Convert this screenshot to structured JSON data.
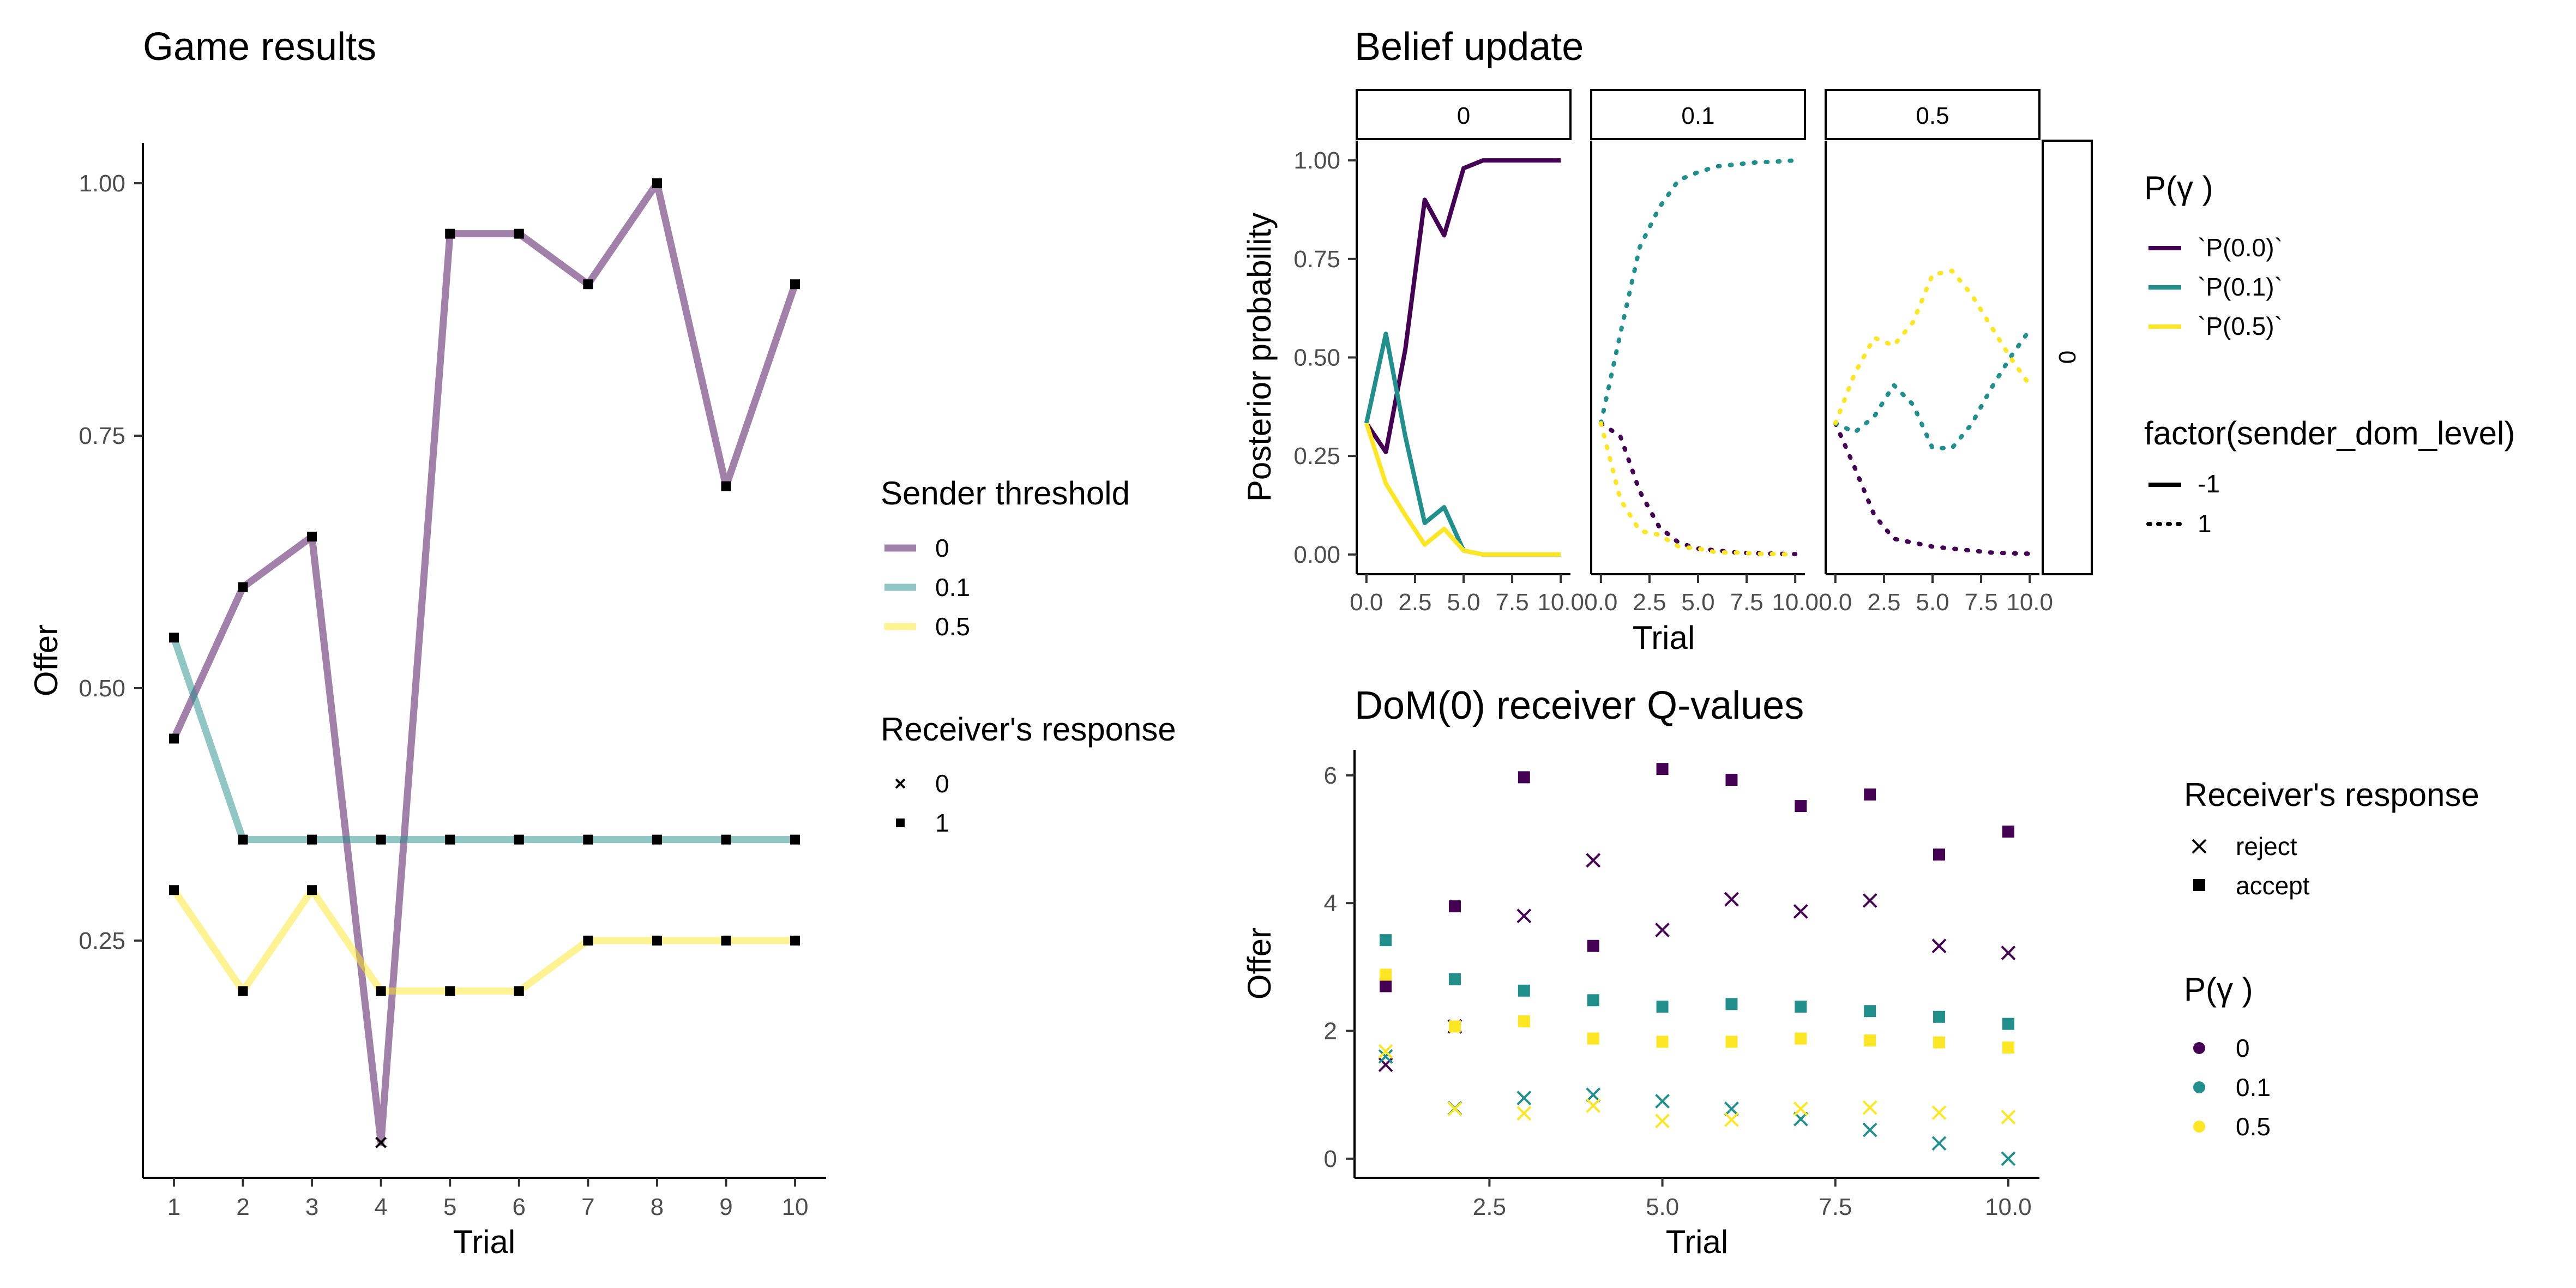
{
  "chart_data": [
    {
      "type": "line",
      "title": "Game results",
      "xlabel": "Trial",
      "ylabel": "Offer",
      "xlim": [
        0.55,
        10.45
      ],
      "ylim": [
        0.015,
        1.04
      ],
      "x_ticks": [
        1,
        2,
        3,
        4,
        5,
        6,
        7,
        8,
        9,
        10
      ],
      "y_ticks": [
        0.25,
        0.5,
        0.75,
        1.0
      ],
      "y_tick_labels": [
        "0.25",
        "0.50",
        "0.75",
        "1.00"
      ],
      "x": [
        1,
        2,
        3,
        4,
        5,
        6,
        7,
        8,
        9,
        10
      ],
      "series": [
        {
          "name": "0",
          "color": "#440154",
          "values": [
            0.45,
            0.6,
            0.65,
            0.05,
            0.95,
            0.95,
            0.9,
            1.0,
            0.7,
            0.9
          ],
          "responses": [
            1,
            1,
            1,
            0,
            1,
            1,
            1,
            1,
            1,
            1
          ]
        },
        {
          "name": "0.1",
          "color": "#21908C",
          "values": [
            0.55,
            0.35,
            0.35,
            0.35,
            0.35,
            0.35,
            0.35,
            0.35,
            0.35,
            0.35
          ],
          "responses": [
            1,
            1,
            1,
            1,
            1,
            1,
            1,
            1,
            1,
            1
          ]
        },
        {
          "name": "0.5",
          "color": "#FDE725",
          "values": [
            0.3,
            0.2,
            0.3,
            0.2,
            0.2,
            0.2,
            0.25,
            0.25,
            0.25,
            0.25
          ],
          "responses": [
            1,
            1,
            1,
            1,
            1,
            1,
            1,
            1,
            1,
            1
          ]
        }
      ],
      "legend": [
        {
          "title": "Sender threshold",
          "entries": [
            "0",
            "0.1",
            "0.5"
          ]
        },
        {
          "title": "Receiver's response",
          "entries": [
            "0",
            "1"
          ]
        }
      ]
    },
    {
      "type": "line",
      "title": "Belief update",
      "xlabel": "Trial",
      "ylabel": "Posterior probability",
      "xlim": [
        -0.5,
        10.5
      ],
      "ylim": [
        -0.05,
        1.05
      ],
      "x_ticks": [
        0,
        2.5,
        5,
        7.5,
        10
      ],
      "x_tick_labels": [
        "0.0",
        "2.5",
        "5.0",
        "7.5",
        "10.0"
      ],
      "y_ticks": [
        0,
        0.25,
        0.5,
        0.75,
        1.0
      ],
      "y_tick_labels": [
        "0.00",
        "0.25",
        "0.50",
        "0.75",
        "1.00"
      ],
      "x": [
        0,
        1,
        2,
        3,
        4,
        5,
        6,
        7,
        8,
        9,
        10
      ],
      "facet_columns": [
        "0",
        "0.1",
        "0.5"
      ],
      "facet_row": "0",
      "panels": [
        {
          "facet": "0",
          "series": [
            {
              "name": "`P(0.0)`",
              "color": "#440154",
              "dom_level": "-1",
              "values": [
                0.333,
                0.26,
                0.52,
                0.9,
                0.81,
                0.98,
                1.0,
                1.0,
                1.0,
                1.0,
                1.0
              ]
            },
            {
              "name": "`P(0.1)`",
              "color": "#21908C",
              "dom_level": "-1",
              "values": [
                0.333,
                0.56,
                0.3,
                0.08,
                0.12,
                0.01,
                0.0,
                0.0,
                0.0,
                0.0,
                0.0
              ]
            },
            {
              "name": "`P(0.5)`",
              "color": "#FDE725",
              "dom_level": "-1",
              "values": [
                0.333,
                0.18,
                0.1,
                0.025,
                0.065,
                0.01,
                0.0,
                0.0,
                0.0,
                0.0,
                0.0
              ]
            }
          ]
        },
        {
          "facet": "0.1",
          "series": [
            {
              "name": "`P(0.0)`",
              "color": "#440154",
              "dom_level": "1",
              "values": [
                0.333,
                0.3,
                0.16,
                0.07,
                0.03,
                0.015,
                0.01,
                0.005,
                0.003,
                0.002,
                0.001
              ]
            },
            {
              "name": "`P(0.1)`",
              "color": "#21908C",
              "dom_level": "1",
              "values": [
                0.333,
                0.56,
                0.78,
                0.88,
                0.95,
                0.97,
                0.985,
                0.99,
                0.995,
                0.997,
                1.0
              ]
            },
            {
              "name": "`P(0.5)`",
              "color": "#FDE725",
              "dom_level": "1",
              "values": [
                0.333,
                0.14,
                0.06,
                0.05,
                0.02,
                0.015,
                0.005,
                0.005,
                0.002,
                0.001,
                0.0
              ]
            }
          ]
        },
        {
          "facet": "0.5",
          "series": [
            {
              "name": "`P(0.0)`",
              "color": "#440154",
              "dom_level": "1",
              "values": [
                0.333,
                0.22,
                0.1,
                0.04,
                0.03,
                0.02,
                0.015,
                0.01,
                0.005,
                0.003,
                0.002
              ]
            },
            {
              "name": "`P(0.1)`",
              "color": "#21908C",
              "dom_level": "1",
              "values": [
                0.333,
                0.31,
                0.35,
                0.43,
                0.38,
                0.27,
                0.27,
                0.33,
                0.42,
                0.5,
                0.57
              ]
            },
            {
              "name": "`P(0.5)`",
              "color": "#FDE725",
              "dom_level": "1",
              "values": [
                0.333,
                0.46,
                0.55,
                0.53,
                0.59,
                0.71,
                0.72,
                0.66,
                0.58,
                0.5,
                0.43
              ]
            }
          ]
        }
      ],
      "legend": [
        {
          "title": "P(γ )",
          "entries": [
            "`P(0.0)`",
            "`P(0.1)`",
            "`P(0.5)`"
          ]
        },
        {
          "title": "factor(sender_dom_level)",
          "entries": [
            "-1",
            "1"
          ]
        }
      ]
    },
    {
      "type": "scatter",
      "title": "DoM(0) receiver Q-values",
      "xlabel": "Trial",
      "ylabel": "Offer",
      "xlim": [
        0.55,
        10.45
      ],
      "ylim": [
        -0.3,
        6.4
      ],
      "x_ticks": [
        2.5,
        5,
        7.5,
        10
      ],
      "x_tick_labels": [
        "2.5",
        "5.0",
        "7.5",
        "10.0"
      ],
      "y_ticks": [
        0,
        2,
        4,
        6
      ],
      "y_tick_labels": [
        "0",
        "2",
        "4",
        "6"
      ],
      "x": [
        1,
        2,
        3,
        4,
        5,
        6,
        7,
        8,
        9,
        10
      ],
      "series": [
        {
          "name": "0",
          "response": "accept",
          "color": "#440154",
          "values": [
            2.7,
            3.95,
            5.97,
            3.33,
            6.1,
            5.93,
            5.52,
            5.7,
            4.76,
            5.12
          ]
        },
        {
          "name": "0",
          "response": "reject",
          "color": "#440154",
          "values": [
            1.47,
            2.07,
            3.8,
            4.67,
            3.58,
            4.06,
            3.87,
            4.04,
            3.33,
            3.22
          ]
        },
        {
          "name": "0.1",
          "response": "accept",
          "color": "#21908C",
          "values": [
            3.42,
            2.81,
            2.63,
            2.48,
            2.38,
            2.42,
            2.38,
            2.31,
            2.22,
            2.11
          ]
        },
        {
          "name": "0.1",
          "response": "reject",
          "color": "#21908C",
          "values": [
            1.6,
            0.79,
            0.95,
            1.0,
            0.9,
            0.78,
            0.62,
            0.45,
            0.24,
            0.0
          ]
        },
        {
          "name": "0.5",
          "response": "accept",
          "color": "#FDE725",
          "values": [
            2.88,
            2.07,
            2.15,
            1.88,
            1.83,
            1.83,
            1.88,
            1.85,
            1.82,
            1.74
          ]
        },
        {
          "name": "0.5",
          "response": "reject",
          "color": "#FDE725",
          "values": [
            1.68,
            0.78,
            0.71,
            0.83,
            0.59,
            0.61,
            0.78,
            0.8,
            0.72,
            0.65
          ]
        }
      ],
      "legend": [
        {
          "title": "Receiver's response",
          "entries": [
            "reject",
            "accept"
          ]
        },
        {
          "title": "P(γ )",
          "entries": [
            "0",
            "0.1",
            "0.5"
          ]
        }
      ]
    }
  ]
}
